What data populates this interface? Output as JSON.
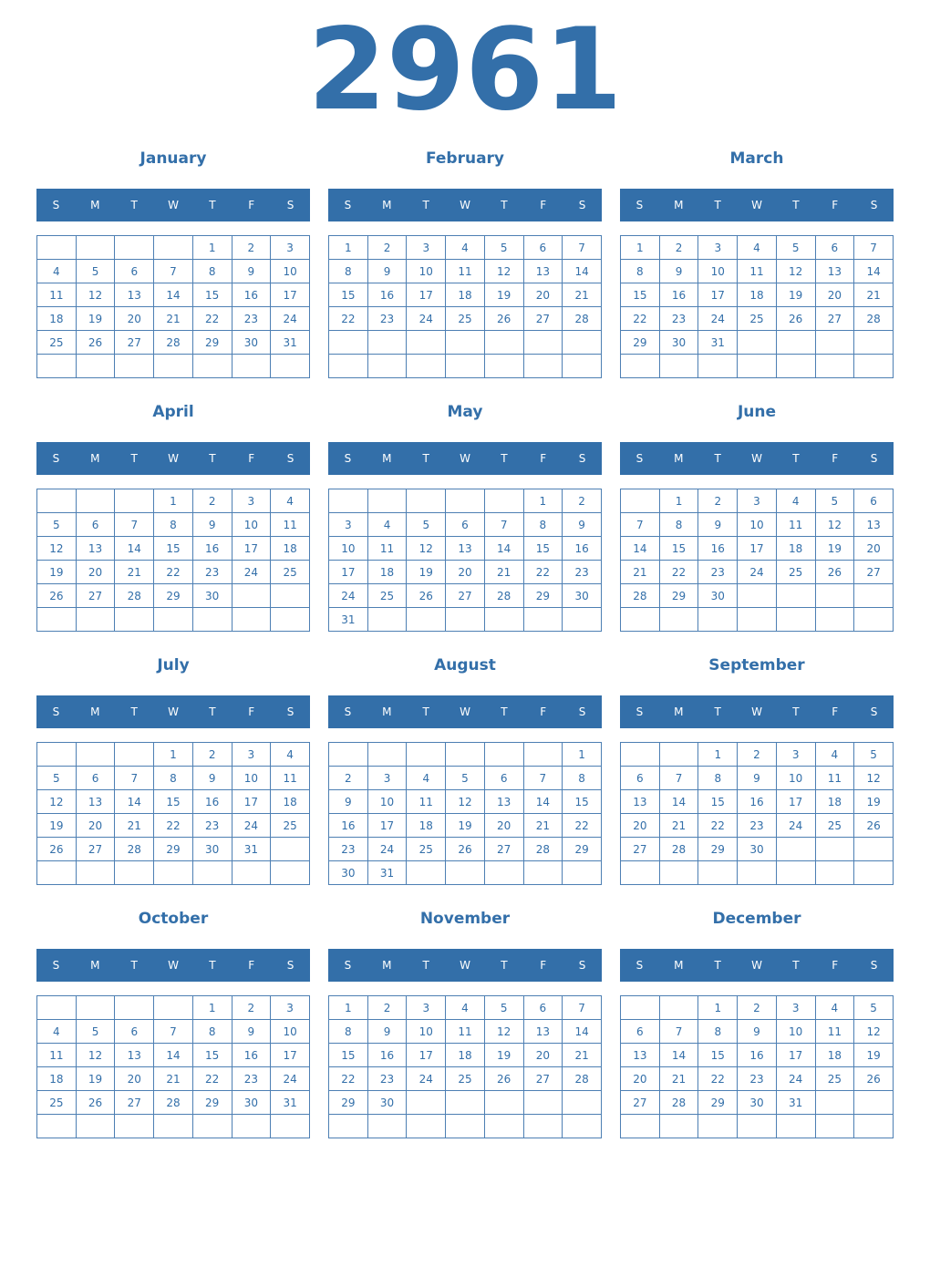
{
  "year": "2961",
  "weekdays": [
    "S",
    "M",
    "T",
    "W",
    "T",
    "F",
    "S"
  ],
  "months": [
    {
      "name": "January",
      "weeks": [
        [
          null,
          null,
          null,
          null,
          1,
          2,
          3
        ],
        [
          4,
          5,
          6,
          7,
          8,
          9,
          10
        ],
        [
          11,
          12,
          13,
          14,
          15,
          16,
          17
        ],
        [
          18,
          19,
          20,
          21,
          22,
          23,
          24
        ],
        [
          25,
          26,
          27,
          28,
          29,
          30,
          31
        ],
        [
          null,
          null,
          null,
          null,
          null,
          null,
          null
        ]
      ]
    },
    {
      "name": "February",
      "weeks": [
        [
          1,
          2,
          3,
          4,
          5,
          6,
          7
        ],
        [
          8,
          9,
          10,
          11,
          12,
          13,
          14
        ],
        [
          15,
          16,
          17,
          18,
          19,
          20,
          21
        ],
        [
          22,
          23,
          24,
          25,
          26,
          27,
          28
        ],
        [
          null,
          null,
          null,
          null,
          null,
          null,
          null
        ],
        [
          null,
          null,
          null,
          null,
          null,
          null,
          null
        ]
      ]
    },
    {
      "name": "March",
      "weeks": [
        [
          1,
          2,
          3,
          4,
          5,
          6,
          7
        ],
        [
          8,
          9,
          10,
          11,
          12,
          13,
          14
        ],
        [
          15,
          16,
          17,
          18,
          19,
          20,
          21
        ],
        [
          22,
          23,
          24,
          25,
          26,
          27,
          28
        ],
        [
          29,
          30,
          31,
          null,
          null,
          null,
          null
        ],
        [
          null,
          null,
          null,
          null,
          null,
          null,
          null
        ]
      ]
    },
    {
      "name": "April",
      "weeks": [
        [
          null,
          null,
          null,
          1,
          2,
          3,
          4
        ],
        [
          5,
          6,
          7,
          8,
          9,
          10,
          11
        ],
        [
          12,
          13,
          14,
          15,
          16,
          17,
          18
        ],
        [
          19,
          20,
          21,
          22,
          23,
          24,
          25
        ],
        [
          26,
          27,
          28,
          29,
          30,
          null,
          null
        ],
        [
          null,
          null,
          null,
          null,
          null,
          null,
          null
        ]
      ]
    },
    {
      "name": "May",
      "weeks": [
        [
          null,
          null,
          null,
          null,
          null,
          1,
          2
        ],
        [
          3,
          4,
          5,
          6,
          7,
          8,
          9
        ],
        [
          10,
          11,
          12,
          13,
          14,
          15,
          16
        ],
        [
          17,
          18,
          19,
          20,
          21,
          22,
          23
        ],
        [
          24,
          25,
          26,
          27,
          28,
          29,
          30
        ],
        [
          31,
          null,
          null,
          null,
          null,
          null,
          null
        ]
      ]
    },
    {
      "name": "June",
      "weeks": [
        [
          null,
          1,
          2,
          3,
          4,
          5,
          6
        ],
        [
          7,
          8,
          9,
          10,
          11,
          12,
          13
        ],
        [
          14,
          15,
          16,
          17,
          18,
          19,
          20
        ],
        [
          21,
          22,
          23,
          24,
          25,
          26,
          27
        ],
        [
          28,
          29,
          30,
          null,
          null,
          null,
          null
        ],
        [
          null,
          null,
          null,
          null,
          null,
          null,
          null
        ]
      ]
    },
    {
      "name": "July",
      "weeks": [
        [
          null,
          null,
          null,
          1,
          2,
          3,
          4
        ],
        [
          5,
          6,
          7,
          8,
          9,
          10,
          11
        ],
        [
          12,
          13,
          14,
          15,
          16,
          17,
          18
        ],
        [
          19,
          20,
          21,
          22,
          23,
          24,
          25
        ],
        [
          26,
          27,
          28,
          29,
          30,
          31,
          null
        ],
        [
          null,
          null,
          null,
          null,
          null,
          null,
          null
        ]
      ]
    },
    {
      "name": "August",
      "weeks": [
        [
          null,
          null,
          null,
          null,
          null,
          null,
          1
        ],
        [
          2,
          3,
          4,
          5,
          6,
          7,
          8
        ],
        [
          9,
          10,
          11,
          12,
          13,
          14,
          15
        ],
        [
          16,
          17,
          18,
          19,
          20,
          21,
          22
        ],
        [
          23,
          24,
          25,
          26,
          27,
          28,
          29
        ],
        [
          30,
          31,
          null,
          null,
          null,
          null,
          null
        ]
      ]
    },
    {
      "name": "September",
      "weeks": [
        [
          null,
          null,
          1,
          2,
          3,
          4,
          5
        ],
        [
          6,
          7,
          8,
          9,
          10,
          11,
          12
        ],
        [
          13,
          14,
          15,
          16,
          17,
          18,
          19
        ],
        [
          20,
          21,
          22,
          23,
          24,
          25,
          26
        ],
        [
          27,
          28,
          29,
          30,
          null,
          null,
          null
        ],
        [
          null,
          null,
          null,
          null,
          null,
          null,
          null
        ]
      ]
    },
    {
      "name": "October",
      "weeks": [
        [
          null,
          null,
          null,
          null,
          1,
          2,
          3
        ],
        [
          4,
          5,
          6,
          7,
          8,
          9,
          10
        ],
        [
          11,
          12,
          13,
          14,
          15,
          16,
          17
        ],
        [
          18,
          19,
          20,
          21,
          22,
          23,
          24
        ],
        [
          25,
          26,
          27,
          28,
          29,
          30,
          31
        ],
        [
          null,
          null,
          null,
          null,
          null,
          null,
          null
        ]
      ]
    },
    {
      "name": "November",
      "weeks": [
        [
          1,
          2,
          3,
          4,
          5,
          6,
          7
        ],
        [
          8,
          9,
          10,
          11,
          12,
          13,
          14
        ],
        [
          15,
          16,
          17,
          18,
          19,
          20,
          21
        ],
        [
          22,
          23,
          24,
          25,
          26,
          27,
          28
        ],
        [
          29,
          30,
          null,
          null,
          null,
          null,
          null
        ],
        [
          null,
          null,
          null,
          null,
          null,
          null,
          null
        ]
      ]
    },
    {
      "name": "December",
      "weeks": [
        [
          null,
          null,
          1,
          2,
          3,
          4,
          5
        ],
        [
          6,
          7,
          8,
          9,
          10,
          11,
          12
        ],
        [
          13,
          14,
          15,
          16,
          17,
          18,
          19
        ],
        [
          20,
          21,
          22,
          23,
          24,
          25,
          26
        ],
        [
          27,
          28,
          29,
          30,
          31,
          null,
          null
        ],
        [
          null,
          null,
          null,
          null,
          null,
          null,
          null
        ]
      ]
    }
  ]
}
